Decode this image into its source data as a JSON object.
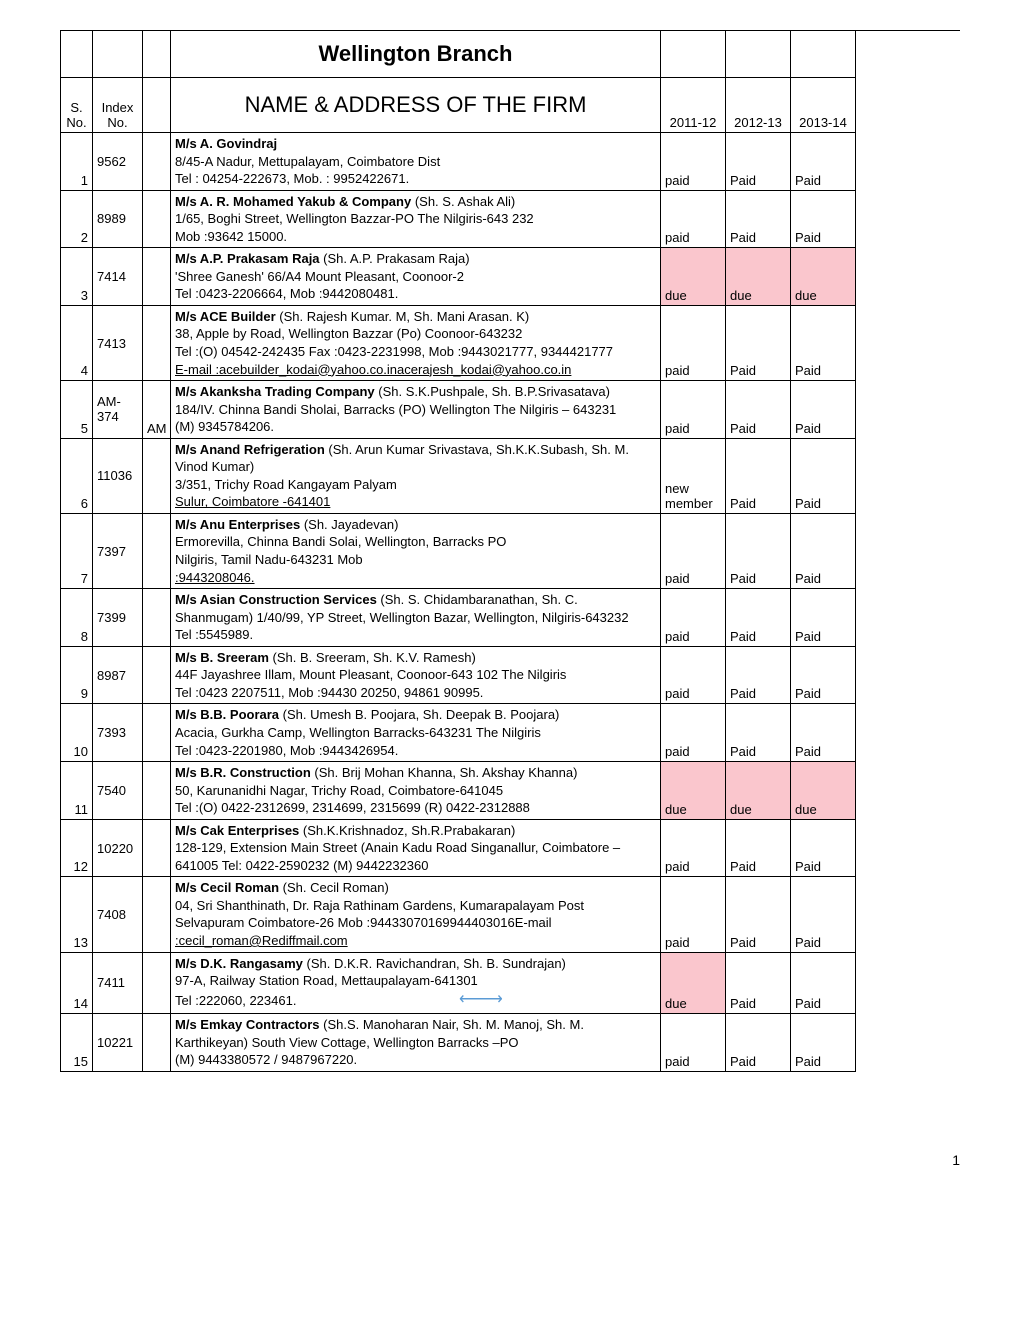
{
  "branch_title": "Wellington Branch",
  "columns": {
    "sno": "S. No.",
    "idx": "Index No.",
    "ext": "",
    "name": "NAME & ADDRESS OF THE FIRM",
    "y1": "2011-12",
    "y2": "2012-13",
    "y3": "2013-14"
  },
  "page_number": "1",
  "status_colors": {
    "due_bg": "#fac6cd"
  },
  "rows": [
    {
      "sno": "1",
      "idx": "9562",
      "ext": "",
      "firm": "M/s A. Govindraj",
      "lines": [
        "8/45-A Nadur, Mettupalayam, Coimbatore Dist",
        "Tel : 04254-222673, Mob. : 9952422671."
      ],
      "y1": "paid",
      "y2": "Paid",
      "y3": "Paid"
    },
    {
      "sno": "2",
      "idx": "8989",
      "ext": "",
      "firm": "M/s A. R. Mohamed Yakub & Company",
      "firm_extra": " (Sh. S. Ashak Ali)",
      "lines": [
        "1/65, Boghi Street, Wellington Bazzar-PO The Nilgiris-643 232",
        "Mob :93642 15000."
      ],
      "y1": "paid",
      "y2": "Paid",
      "y3": "Paid"
    },
    {
      "sno": "3",
      "idx": "7414",
      "ext": "",
      "firm": "M/s A.P. Prakasam Raja",
      "firm_extra": " (Sh. A.P. Prakasam Raja)",
      "lines": [
        "'Shree Ganesh' 66/A4 Mount Pleasant, Coonoor-2",
        "Tel :0423-2206664, Mob :9442080481."
      ],
      "y1": "due",
      "y2": "due",
      "y3": "due",
      "due_row": true
    },
    {
      "sno": "4",
      "idx": "7413",
      "ext": "",
      "firm": "M/s ACE Builder",
      "firm_extra": " (Sh. Rajesh Kumar. M, Sh. Mani Arasan. K)",
      "lines": [
        "38, Apple by Road, Wellington Bazzar (Po) Coonoor-643232",
        "Tel :(O) 04542-242435 Fax :0423-2231998, Mob :9443021777, 9344421777"
      ],
      "underline_line": "E-mail :acebuilder_kodai@yahoo.co.inacerajesh_kodai@yahoo.co.in",
      "y1": "paid",
      "y2": "Paid",
      "y3": "Paid"
    },
    {
      "sno": "5",
      "idx": "AM-374",
      "ext": "AM",
      "firm": "M/s Akanksha Trading Company ",
      "firm_extra": " (Sh. S.K.Pushpale, Sh. B.P.Srivasatava)",
      "lines": [
        "184/IV. Chinna Bandi Sholai, Barracks (PO) Wellington The Nilgiris – 643231",
        "(M)     9345784206."
      ],
      "y1": "paid",
      "y2": "Paid",
      "y3": "Paid"
    },
    {
      "sno": "6",
      "idx": "11036",
      "ext": "",
      "firm": "M/s Anand Refrigeration ",
      "firm_extra": " (Sh. Arun Kumar Srivastava, Sh.K.K.Subash, Sh. M. Vinod Kumar)",
      "lines": [
        " 3/351, Trichy Road  Kangayam Palyam"
      ],
      "underline_line": " Sulur, Coimbatore -641401",
      "y1": "new member",
      "y2": "Paid",
      "y3": "Paid"
    },
    {
      "sno": "7",
      "idx": "7397",
      "ext": "",
      "firm": "M/s Anu Enterprises",
      "firm_extra": " (Sh. Jayadevan)",
      "lines": [
        "Ermorevilla, Chinna Bandi Solai, Wellington, Barracks PO",
        "Nilgiris, Tamil Nadu-643231                                                                    Mob"
      ],
      "underline_line": ":9443208046.",
      "y1": "paid",
      "y2": "Paid",
      "y3": "Paid"
    },
    {
      "sno": "8",
      "idx": "7399",
      "ext": "",
      "firm": "M/s Asian Construction Services",
      "firm_extra": " (Sh. S. Chidambaranathan, Sh. C. Shanmugam) 1/40/99, YP Street, Wellington Bazar, Wellington, Nilgiris-643232",
      "lines": [
        "Tel :5545989."
      ],
      "y1": "paid",
      "y2": "Paid",
      "y3": "Paid"
    },
    {
      "sno": "9",
      "idx": "8987",
      "ext": "",
      "firm": "M/s B. Sreeram",
      "firm_extra": " (Sh. B. Sreeram, Sh. K.V. Ramesh)",
      "lines": [
        "44F Jayashree Illam, Mount Pleasant, Coonoor-643 102 The Nilgiris",
        "Tel :0423 2207511, Mob :94430 20250, 94861 90995."
      ],
      "y1": "paid",
      "y2": "Paid",
      "y3": "Paid"
    },
    {
      "sno": "10",
      "idx": "7393",
      "ext": "",
      "firm": "M/s B.B. Poorara",
      "firm_extra": " (Sh. Umesh B. Poojara, Sh. Deepak B. Poojara)",
      "lines": [
        "Acacia, Gurkha Camp, Wellington Barracks-643231 The Nilgiris",
        "Tel :0423-2201980, Mob :9443426954."
      ],
      "y1": "paid",
      "y2": "Paid",
      "y3": "Paid"
    },
    {
      "sno": "11",
      "idx": "7540",
      "ext": "",
      "firm": "M/s B.R. Construction",
      "firm_extra": " (Sh. Brij Mohan Khanna, Sh. Akshay Khanna)",
      "lines": [
        "50, Karunanidhi Nagar, Trichy Road, Coimbatore-641045",
        "Tel :(O) 0422-2312699, 2314699, 2315699 (R) 0422-2312888"
      ],
      "y1": "due",
      "y2": "due",
      "y3": "due",
      "due_row": true
    },
    {
      "sno": "12",
      "idx": "10220",
      "ext": "",
      "firm": "M/s Cak Enterprises",
      "firm_extra": " (Sh.K.Krishnadoz, Sh.R.Prabakaran)",
      "lines": [
        "128-129, Extension  Main Street (Anain Kadu Road Singanallur, Coimbatore – 641005  Tel: 0422-2590232 (M) 9442232360"
      ],
      "y1": "paid",
      "y2": "Paid",
      "y3": "Paid"
    },
    {
      "sno": "13",
      "idx": "7408",
      "ext": "",
      "firm": "M/s Cecil Roman",
      "firm_extra": " (Sh. Cecil Roman)",
      "lines": [
        "04, Sri Shanthinath, Dr. Raja Rathinam Gardens, Kumarapalayam Post",
        "Selvapuram Coimbatore-26 Mob :94433070169944403016E-mail"
      ],
      "underline_line": ":cecil_roman@Rediffmail.com",
      "y1": "paid",
      "y2": "Paid",
      "y3": "Paid"
    },
    {
      "sno": "14",
      "idx": "7411",
      "ext": "",
      "firm": "M/s D.K. Rangasamy",
      "firm_extra": " (Sh. D.K.R. Ravichandran, Sh. B. Sundrajan)",
      "lines": [
        "97-A, Railway Station Road, Mettaupalayam-641301",
        "Tel :222060, 223461."
      ],
      "has_arrow": true,
      "y1": "due",
      "y2": "Paid",
      "y3": "Paid",
      "due_cells": [
        "y1"
      ]
    },
    {
      "sno": "15",
      "idx": "10221",
      "ext": "",
      "firm": "M/s Emkay Contractors",
      "firm_extra": " (Sh.S. Manoharan Nair, Sh. M. Manoj, Sh. M. Karthikeyan) South View Cottage, Wellington Barracks –PO",
      "lines": [
        "(M) 9443380572 / 9487967220."
      ],
      "y1": "paid",
      "y2": "Paid",
      "y3": "Paid"
    }
  ]
}
